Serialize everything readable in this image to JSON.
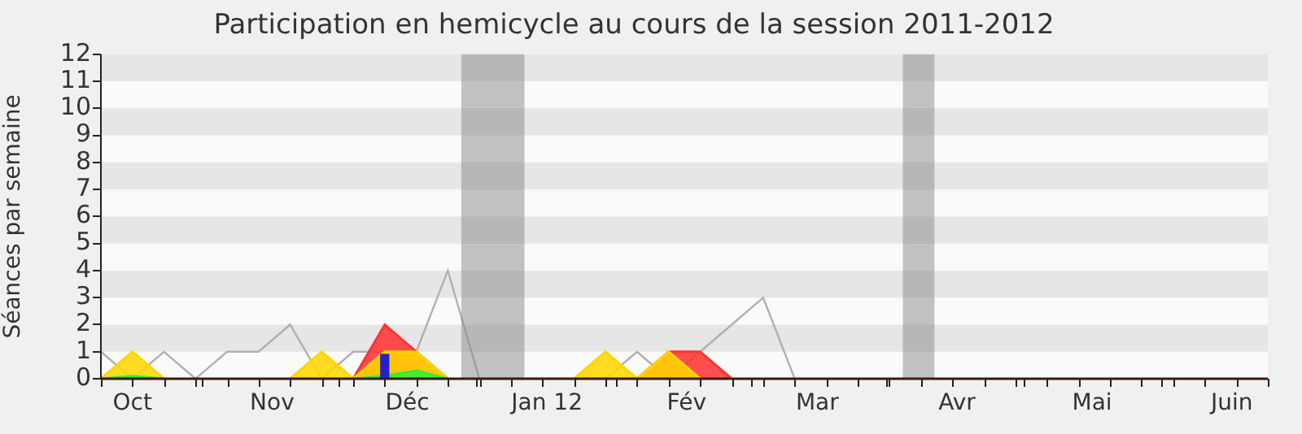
{
  "chart_data": {
    "type": "line",
    "title": "Participation en hemicycle au cours de la session 2011-2012",
    "ylabel": "Séances par semaine",
    "x": [
      "2011-09-24",
      "2011-10-01",
      "2011-10-08",
      "2011-10-15",
      "2011-10-22",
      "2011-10-29",
      "2011-11-05",
      "2011-11-12",
      "2011-11-19",
      "2011-11-26",
      "2011-12-03",
      "2011-12-10",
      "2011-12-17",
      "2011-12-24",
      "2011-12-31",
      "2012-01-07",
      "2012-01-14",
      "2012-01-21",
      "2012-01-28",
      "2012-02-04",
      "2012-02-11",
      "2012-02-18",
      "2012-02-25"
    ],
    "series": [
      {
        "color": "#b0b0b0",
        "values": [
          1,
          0,
          1,
          0,
          1,
          1,
          2,
          0,
          1,
          null,
          1,
          4,
          0,
          0,
          0,
          0,
          0,
          1,
          0,
          1,
          2,
          3,
          0
        ]
      },
      {
        "type": "area",
        "color": "#ff3333",
        "values": [
          null,
          null,
          null,
          null,
          null,
          null,
          null,
          null,
          0,
          2,
          1,
          0,
          null,
          null,
          null,
          null,
          null,
          0,
          1,
          1,
          0,
          null,
          null
        ]
      },
      {
        "type": "area",
        "color": "#ffd700",
        "values": [
          0,
          1,
          0,
          null,
          null,
          null,
          0,
          1,
          0,
          1,
          1,
          0,
          null,
          null,
          null,
          0,
          1,
          0,
          1,
          0,
          null,
          null,
          null
        ]
      },
      {
        "type": "area",
        "color": "#33ee33",
        "values": [
          0,
          0.1,
          0,
          null,
          null,
          null,
          null,
          null,
          0,
          0.1,
          0.3,
          0,
          null,
          null,
          null,
          null,
          null,
          null,
          null,
          null,
          null,
          null,
          null
        ]
      },
      {
        "type": "bar",
        "color": "#2222cc",
        "values": [
          null,
          null,
          null,
          null,
          null,
          null,
          null,
          null,
          null,
          0.9,
          null,
          null,
          null,
          null,
          null,
          null,
          null,
          null,
          null,
          null,
          null,
          null,
          null
        ]
      }
    ],
    "xlim": [
      "2011-09-24",
      "2012-06-09"
    ],
    "xticks": [
      {
        "value": "2011-10-01",
        "label": "Oct"
      },
      {
        "value": "2011-11-01",
        "label": "Nov"
      },
      {
        "value": "2011-12-01",
        "label": "Déc"
      },
      {
        "value": "2012-01-01",
        "label": "Jan 12"
      },
      {
        "value": "2012-02-01",
        "label": "Fév"
      },
      {
        "value": "2012-03-01",
        "label": "Mar"
      },
      {
        "value": "2012-04-01",
        "label": "Avr"
      },
      {
        "value": "2012-05-01",
        "label": "Mai"
      },
      {
        "value": "2012-06-01",
        "label": "Juin"
      }
    ],
    "ylim": [
      0,
      12
    ],
    "yticks": [
      0,
      1,
      2,
      3,
      4,
      5,
      6,
      7,
      8,
      9,
      10,
      11,
      12
    ],
    "bands": [
      {
        "axis": "x",
        "from": "2011-12-13",
        "to": "2011-12-27",
        "color": "#888888"
      },
      {
        "axis": "x",
        "from": "2012-03-20",
        "to": "2012-03-27",
        "color": "#888888"
      }
    ],
    "legend": false
  }
}
